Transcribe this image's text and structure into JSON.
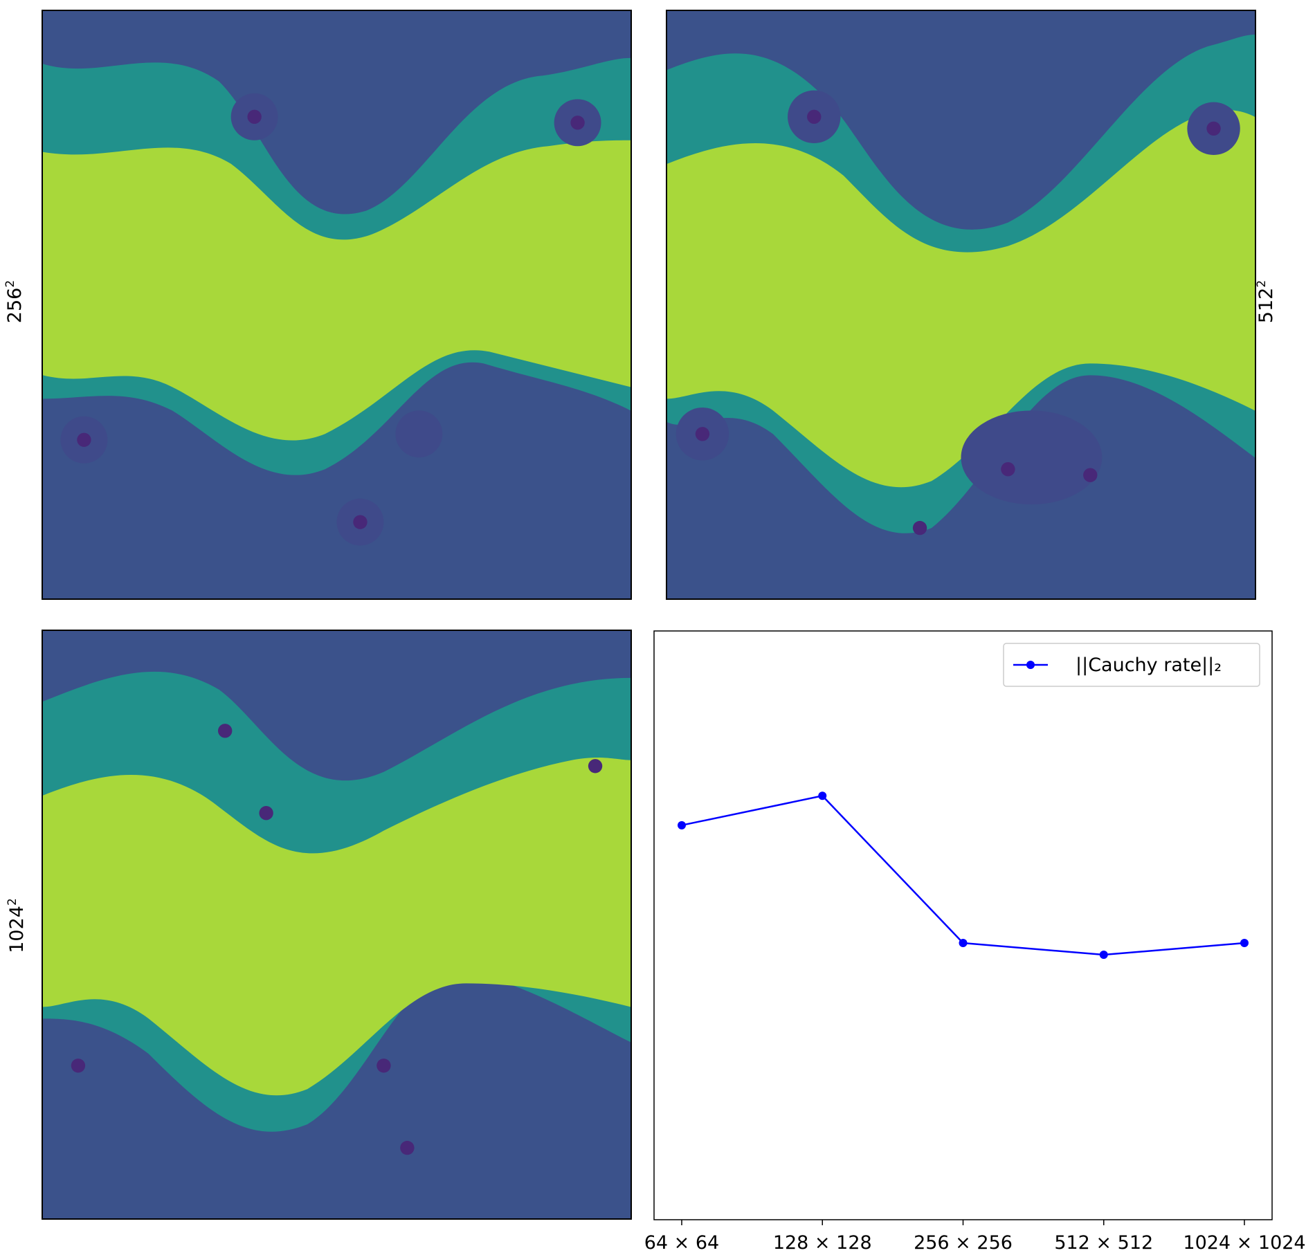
{
  "panels": [
    {
      "id": "p256",
      "label_base": "256",
      "label_exp": "2"
    },
    {
      "id": "p512",
      "label_base": "512",
      "label_exp": "2"
    },
    {
      "id": "p1024",
      "label_base": "1024",
      "label_exp": "2"
    }
  ],
  "colors": {
    "background_field": "#3b528b",
    "mixing_layer": "#b5de2b",
    "interface": "#21918c",
    "vortex_core": "#482878",
    "line": "#0000ff"
  },
  "chart_data": {
    "type": "line",
    "categories": [
      "64 × 64",
      "128 × 128",
      "256 × 256",
      "512 × 512",
      "1024 × 1024"
    ],
    "series": [
      {
        "name": "||Cauchy rate||₂",
        "values": [
          0.67,
          0.72,
          0.47,
          0.45,
          0.47
        ],
        "color": "#0000ff",
        "marker": "circle"
      }
    ],
    "ylim": [
      0.0,
      1.0
    ],
    "legend": "top-right",
    "grid": false,
    "yticks_shown": false
  }
}
